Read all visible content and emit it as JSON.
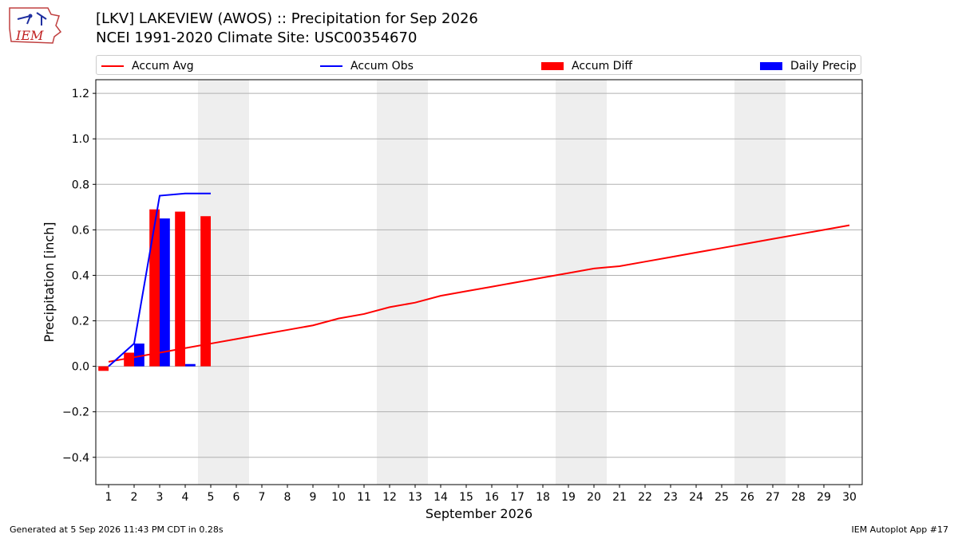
{
  "header": {
    "logo_text": "IEM",
    "title_line1": "[LKV] LAKEVIEW (AWOS) :: Precipitation for Sep 2026",
    "title_line2": "NCEI 1991-2020 Climate Site: USC00354670"
  },
  "footer": {
    "generated": "Generated at 5 Sep 2026 11:43 PM CDT in 0.28s",
    "app": "IEM Autoplot App #17"
  },
  "colors": {
    "avg": "#ff0000",
    "obs": "#0000ff",
    "diff": "#ff0000",
    "daily": "#0000ff",
    "weekend": "#eeeeee",
    "grid": "#b0b0b0"
  },
  "chart_data": {
    "type": "bar",
    "xlabel": "September 2026",
    "ylabel": "Precipitation [inch]",
    "ylim": [
      -0.52,
      1.26
    ],
    "yticks": [
      -0.4,
      -0.2,
      0.0,
      0.2,
      0.4,
      0.6,
      0.8,
      1.0,
      1.2
    ],
    "ytick_labels": [
      "−0.4",
      "−0.2",
      "0.0",
      "0.2",
      "0.4",
      "0.6",
      "0.8",
      "1.0",
      "1.2"
    ],
    "grid": true,
    "legend_position": "top",
    "days": [
      1,
      2,
      3,
      4,
      5,
      6,
      7,
      8,
      9,
      10,
      11,
      12,
      13,
      14,
      15,
      16,
      17,
      18,
      19,
      20,
      21,
      22,
      23,
      24,
      25,
      26,
      27,
      28,
      29,
      30
    ],
    "weekend_spans": [
      [
        5,
        6
      ],
      [
        12,
        13
      ],
      [
        19,
        20
      ],
      [
        26,
        27
      ]
    ],
    "series": [
      {
        "name": "Accum Avg",
        "kind": "line",
        "values": [
          0.02,
          0.04,
          0.06,
          0.08,
          0.1,
          0.12,
          0.14,
          0.16,
          0.18,
          0.21,
          0.23,
          0.26,
          0.28,
          0.31,
          0.33,
          0.35,
          0.37,
          0.39,
          0.41,
          0.43,
          0.44,
          0.46,
          0.48,
          0.5,
          0.52,
          0.54,
          0.56,
          0.58,
          0.6,
          0.62
        ]
      },
      {
        "name": "Accum Obs",
        "kind": "line",
        "values": [
          0.0,
          0.1,
          0.75,
          0.76,
          0.76
        ]
      },
      {
        "name": "Accum Diff",
        "kind": "bar",
        "values": [
          -0.02,
          0.06,
          0.69,
          0.68,
          0.66
        ]
      },
      {
        "name": "Daily Precip",
        "kind": "bar",
        "values": [
          0.0,
          0.1,
          0.65,
          0.01,
          0.0
        ]
      }
    ]
  }
}
